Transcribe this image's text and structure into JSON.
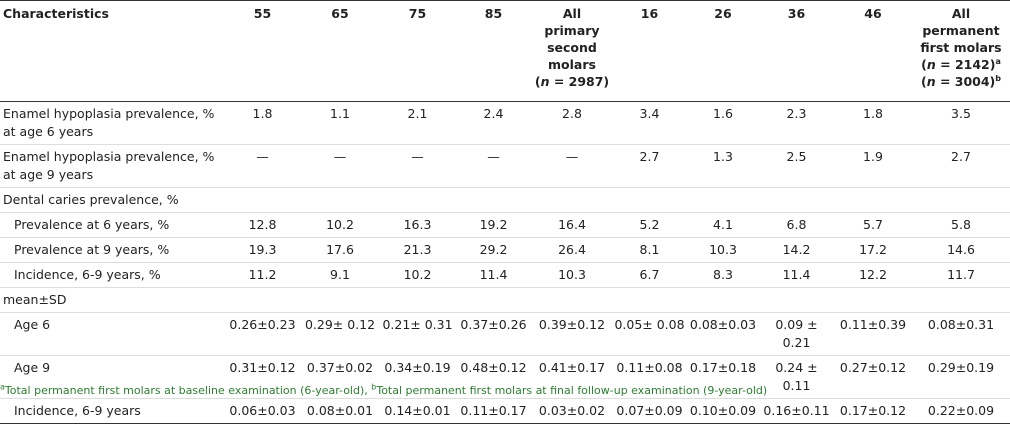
{
  "header": {
    "columns": [
      [
        "Characteristics"
      ],
      [
        "55"
      ],
      [
        "65"
      ],
      [
        "75"
      ],
      [
        "85"
      ],
      [
        "All",
        "primary",
        "second",
        "molars",
        {
          "pre": "(",
          "n": "n",
          "text": " = 2987)"
        }
      ],
      [
        "16"
      ],
      [
        "26"
      ],
      [
        "36"
      ],
      [
        "46"
      ],
      [
        "All",
        "permanent",
        "first molars",
        {
          "pre": "(",
          "n": "n",
          "text": " = 2142)",
          "sup": "a"
        },
        {
          "pre": "(",
          "n": "n",
          "text": " = 3004)",
          "sup": "b"
        }
      ]
    ]
  },
  "rows": [
    {
      "label": [
        "Enamel hypoplasia prevalence, %",
        "at age 6 years"
      ],
      "values": [
        1.8,
        1.1,
        2.1,
        2.4,
        2.8,
        3.4,
        1.6,
        2.3,
        1.8,
        3.5
      ]
    },
    {
      "label": [
        "Enamel hypoplasia prevalence, %",
        "at age 9 years"
      ],
      "values": [
        "—",
        "—",
        "—",
        "—",
        "—",
        2.7,
        1.3,
        2.5,
        1.9,
        2.7
      ]
    },
    {
      "label": [
        "Dental caries prevalence, %"
      ],
      "values": []
    },
    {
      "label": [
        "Prevalence at 6 years, %"
      ],
      "indent": true,
      "values": [
        12.8,
        10.2,
        16.3,
        19.2,
        16.4,
        5.2,
        4.1,
        6.8,
        5.7,
        5.8
      ]
    },
    {
      "label": [
        "Prevalence at 9 years, %"
      ],
      "indent": true,
      "values": [
        19.3,
        17.6,
        21.3,
        29.2,
        26.4,
        8.1,
        10.3,
        14.2,
        17.2,
        14.6
      ]
    },
    {
      "label": [
        "Incidence, 6-9 years, %"
      ],
      "indent": true,
      "values": [
        11.2,
        9.1,
        10.2,
        11.4,
        10.3,
        6.7,
        8.3,
        11.4,
        12.2,
        11.7
      ]
    },
    {
      "label": [
        "mean±SD"
      ],
      "values": []
    },
    {
      "label": [
        "Age 6"
      ],
      "indent": true,
      "values": [
        "0.26±0.23",
        "0.29± 0.12",
        "0.21± 0.31",
        "0.37±0.26",
        "0.39±0.12",
        "0.05± 0.08",
        "0.08±0.03",
        "0.09 ± 0.21",
        "0.11±0.39",
        "0.08±0.31"
      ]
    },
    {
      "label": [
        "Age 9"
      ],
      "indent": true,
      "values": [
        "0.31±0.12",
        "0.37±0.02",
        "0.34±0.19",
        "0.48±0.12",
        "0.41±0.17",
        "0.11±0.08",
        "0.17±0.18",
        "0.24 ± 0.11",
        "0.27±0.12",
        "0.29±0.19"
      ]
    },
    {
      "label": [
        "Incidence, 6-9 years"
      ],
      "indent": true,
      "values": [
        "0.06±0.03",
        "0.08±0.01",
        "0.14±0.01",
        "0.11±0.17",
        "0.03±0.02",
        "0.07±0.09",
        "0.10±0.09",
        "0.16±0.11",
        "0.17±0.12",
        "0.22±0.09"
      ]
    }
  ],
  "footnotes": [
    {
      "sup": "a",
      "text": "Total permanent first molars at baseline examination (6-year-old), "
    },
    {
      "sup": "b",
      "text": "Total permanent first molars at final follow-up examination (9-year-old)"
    }
  ]
}
